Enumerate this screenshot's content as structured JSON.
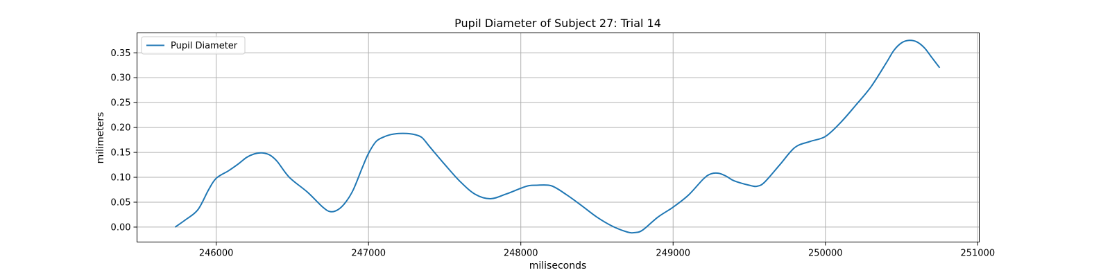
{
  "chart_data": {
    "type": "line",
    "title": "Pupil Diameter of Subject 27: Trial 14",
    "xlabel": "miliseconds",
    "ylabel": "milimeters",
    "xlim": [
      245480,
      251010
    ],
    "ylim": [
      -0.03,
      0.39
    ],
    "x_ticks": [
      246000,
      247000,
      248000,
      249000,
      250000,
      251000
    ],
    "y_ticks": [
      0.0,
      0.05,
      0.1,
      0.15,
      0.2,
      0.25,
      0.3,
      0.35
    ],
    "grid": true,
    "legend_position": "upper-left",
    "series": [
      {
        "name": "Pupil Diameter",
        "color": "#1f77b4",
        "x": [
          245730,
          245800,
          245880,
          245950,
          246000,
          246080,
          246150,
          246200,
          246250,
          246300,
          246350,
          246400,
          246480,
          246600,
          246700,
          246750,
          246800,
          246850,
          246900,
          246960,
          247000,
          247050,
          247100,
          247150,
          247200,
          247250,
          247300,
          247350,
          247400,
          247500,
          247600,
          247700,
          247800,
          247900,
          248000,
          248050,
          248100,
          248200,
          248300,
          248400,
          248500,
          248600,
          248700,
          248750,
          248800,
          248900,
          249000,
          249100,
          249200,
          249250,
          249300,
          249350,
          249400,
          249500,
          249550,
          249600,
          249700,
          249800,
          249900,
          250000,
          250100,
          250200,
          250300,
          250400,
          250450,
          250500,
          250550,
          250600,
          250650,
          250700,
          250750
        ],
        "values": [
          0.0,
          0.015,
          0.035,
          0.075,
          0.098,
          0.113,
          0.128,
          0.14,
          0.147,
          0.149,
          0.145,
          0.132,
          0.1,
          0.07,
          0.04,
          0.031,
          0.035,
          0.05,
          0.075,
          0.12,
          0.148,
          0.172,
          0.181,
          0.186,
          0.188,
          0.188,
          0.186,
          0.18,
          0.162,
          0.126,
          0.092,
          0.066,
          0.057,
          0.066,
          0.078,
          0.083,
          0.084,
          0.083,
          0.065,
          0.043,
          0.02,
          0.002,
          -0.01,
          -0.011,
          -0.006,
          0.02,
          0.04,
          0.064,
          0.097,
          0.107,
          0.108,
          0.102,
          0.093,
          0.084,
          0.082,
          0.09,
          0.125,
          0.16,
          0.172,
          0.182,
          0.21,
          0.245,
          0.282,
          0.33,
          0.355,
          0.37,
          0.375,
          0.372,
          0.36,
          0.34,
          0.32
        ]
      }
    ]
  }
}
